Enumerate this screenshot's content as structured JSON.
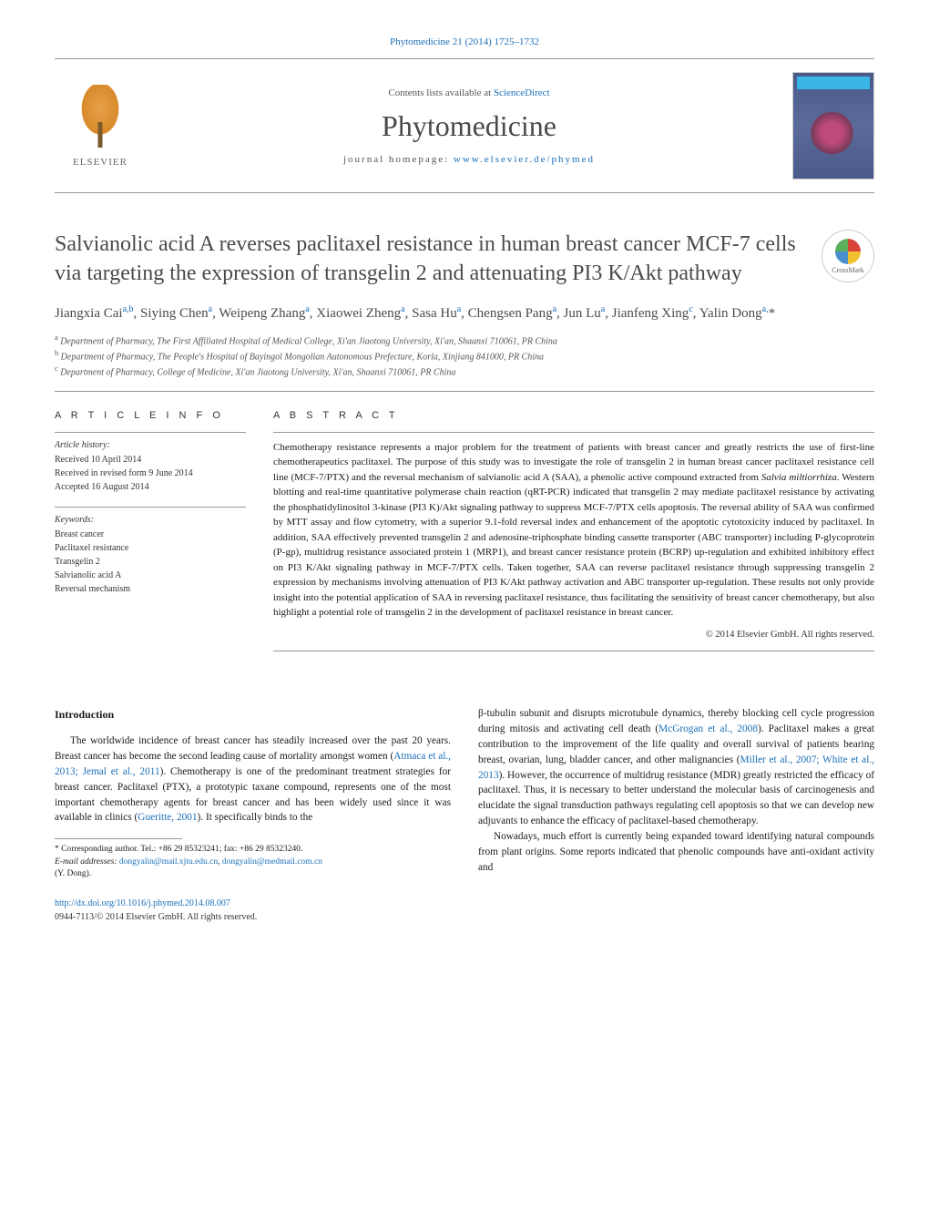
{
  "citation": {
    "prefix": "Phytomedicine 21 (2014) 1725–1732"
  },
  "header": {
    "contents": "Contents lists available at",
    "contents_link": "ScienceDirect",
    "journal": "Phytomedicine",
    "homepage_label": "journal homepage:",
    "homepage_url": "www.elsevier.de/phymed",
    "publisher": "ELSEVIER"
  },
  "title": "Salvianolic acid A reverses paclitaxel resistance in human breast cancer MCF-7 cells via targeting the expression of transgelin 2 and attenuating PI3 K/Akt pathway",
  "crossmark": "CrossMark",
  "authors_html": "Jiangxia Cai<sup>a,b</sup>, Siying Chen<sup>a</sup>, Weipeng Zhang<sup>a</sup>, Xiaowei Zheng<sup>a</sup>, Sasa Hu<sup>a</sup>, Chengsen Pang<sup>a</sup>, Jun Lu<sup>a</sup>, Jianfeng Xing<sup>c</sup>, Yalin Dong<sup>a,</sup>*",
  "affiliations": [
    "a Department of Pharmacy, The First Affiliated Hospital of Medical College, Xi'an Jiaotong University, Xi'an, Shaanxi 710061, PR China",
    "b Department of Pharmacy, The People's Hospital of Bayingol Mongolian Autonomous Prefecture, Korla, Xinjiang 841000, PR China",
    "c Department of Pharmacy, College of Medicine, Xi'an Jiaotong University, Xi'an, Shaanxi 710061, PR China"
  ],
  "info": {
    "heading": "A R T I C L E   I N F O",
    "history_label": "Article history:",
    "history": "Received 10 April 2014\nReceived in revised form 9 June 2014\nAccepted 16 August 2014",
    "keywords_label": "Keywords:",
    "keywords": "Breast cancer\nPaclitaxel resistance\nTransgelin 2\nSalvianolic acid A\nReversal mechanism"
  },
  "abstract": {
    "heading": "A B S T R A C T",
    "text": "Chemotherapy resistance represents a major problem for the treatment of patients with breast cancer and greatly restricts the use of first-line chemotherapeutics paclitaxel. The purpose of this study was to investigate the role of transgelin 2 in human breast cancer paclitaxel resistance cell line (MCF-7/PTX) and the reversal mechanism of salvianolic acid A (SAA), a phenolic active compound extracted from Salvia miltiorrhiza. Western blotting and real-time quantitative polymerase chain reaction (qRT-PCR) indicated that transgelin 2 may mediate paclitaxel resistance by activating the phosphatidylinositol 3-kinase (PI3 K)/Akt signaling pathway to suppress MCF-7/PTX cells apoptosis. The reversal ability of SAA was confirmed by MTT assay and flow cytometry, with a superior 9.1-fold reversal index and enhancement of the apoptotic cytotoxicity induced by paclitaxel. In addition, SAA effectively prevented transgelin 2 and adenosine-triphosphate binding cassette transporter (ABC transporter) including P-glycoprotein (P-gp), multidrug resistance associated protein 1 (MRP1), and breast cancer resistance protein (BCRP) up-regulation and exhibited inhibitory effect on PI3 K/Akt signaling pathway in MCF-7/PTX cells. Taken together, SAA can reverse paclitaxel resistance through suppressing transgelin 2 expression by mechanisms involving attenuation of PI3 K/Akt pathway activation and ABC transporter up-regulation. These results not only provide insight into the potential application of SAA in reversing paclitaxel resistance, thus facilitating the sensitivity of breast cancer chemotherapy, but also highlight a potential role of transgelin 2 in the development of paclitaxel resistance in breast cancer.",
    "copyright": "© 2014 Elsevier GmbH. All rights reserved."
  },
  "body": {
    "intro_heading": "Introduction",
    "col1_p1_a": "The worldwide incidence of breast cancer has steadily increased over the past 20 years. Breast cancer has become the second leading cause of mortality amongst women (",
    "col1_p1_link1": "Atmaca et al., 2013; Jemal et al., 2011",
    "col1_p1_b": "). Chemotherapy is one of the predominant treatment strategies for breast cancer. Paclitaxel (PTX), a prototypic taxane compound, represents one of the most important chemotherapy agents for breast cancer and has been widely used since it was available in clinics (",
    "col1_p1_link2": "Gueritte, 2001",
    "col1_p1_c": "). It specifically binds to the",
    "col2_p1_a": "β-tubulin subunit and disrupts microtubule dynamics, thereby blocking cell cycle progression during mitosis and activating cell death (",
    "col2_p1_link1": "McGrogan et al., 2008",
    "col2_p1_b": "). Paclitaxel makes a great contribution to the improvement of the life quality and overall survival of patients bearing breast, ovarian, lung, bladder cancer, and other malignancies (",
    "col2_p1_link2": "Miller et al., 2007; White et al., 2013",
    "col2_p1_c": "). However, the occurrence of multidrug resistance (MDR) greatly restricted the efficacy of paclitaxel. Thus, it is necessary to better understand the molecular basis of carcinogenesis and elucidate the signal transduction pathways regulating cell apoptosis so that we can develop new adjuvants to enhance the efficacy of paclitaxel-based chemotherapy.",
    "col2_p2": "Nowadays, much effort is currently being expanded toward identifying natural compounds from plant origins. Some reports indicated that phenolic compounds have anti-oxidant activity and"
  },
  "footnotes": {
    "corr": "* Corresponding author. Tel.: +86 29 85323241; fax: +86 29 85323240.",
    "email_label": "E-mail addresses:",
    "email1": "dongyalin@mail.xjtu.edu.cn",
    "email2": "dongyalin@medmail.com.cn",
    "email_name": "(Y. Dong)."
  },
  "doi": {
    "url": "http://dx.doi.org/10.1016/j.phymed.2014.08.007",
    "issn": "0944-7113/© 2014 Elsevier GmbH. All rights reserved."
  },
  "colors": {
    "link": "#1a6fb8",
    "text": "#1a1a1a",
    "heading_gray": "#4a4a4a",
    "border": "#999999"
  }
}
